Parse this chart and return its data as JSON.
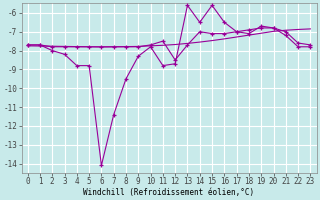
{
  "xlabel": "Windchill (Refroidissement éolien,°C)",
  "bg_color": "#c8eaea",
  "line_color": "#990099",
  "grid_color": "#ffffff",
  "x": [
    0,
    1,
    2,
    3,
    4,
    5,
    6,
    7,
    8,
    9,
    10,
    11,
    12,
    13,
    14,
    15,
    16,
    17,
    18,
    19,
    20,
    21,
    22,
    23
  ],
  "line1": [
    -7.7,
    -7.7,
    -8.0,
    -8.2,
    -8.8,
    -8.8,
    -14.1,
    -11.4,
    -9.5,
    -8.3,
    -7.8,
    -8.8,
    -8.7,
    -5.6,
    -6.5,
    -5.6,
    -6.5,
    -7.0,
    -7.1,
    -6.7,
    -6.8,
    -7.2,
    -7.8,
    -7.8
  ],
  "line2": [
    -7.7,
    -7.7,
    -7.8,
    -7.8,
    -7.8,
    -7.8,
    -7.8,
    -7.8,
    -7.8,
    -7.8,
    -7.7,
    -7.5,
    -8.5,
    -7.7,
    -7.0,
    -7.1,
    -7.1,
    -7.0,
    -6.9,
    -6.8,
    -6.8,
    -7.0,
    -7.6,
    -7.7
  ],
  "trend": [
    -7.75,
    -7.76,
    -7.77,
    -7.78,
    -7.79,
    -7.8,
    -7.81,
    -7.8,
    -7.79,
    -7.78,
    -7.75,
    -7.72,
    -7.68,
    -7.62,
    -7.55,
    -7.47,
    -7.38,
    -7.28,
    -7.18,
    -7.08,
    -6.98,
    -6.92,
    -6.88,
    -6.85
  ],
  "ylim": [
    -14.5,
    -5.5
  ],
  "xlim": [
    -0.5,
    23.5
  ],
  "yticks": [
    -14,
    -13,
    -12,
    -11,
    -10,
    -9,
    -8,
    -7,
    -6
  ],
  "xticks": [
    0,
    1,
    2,
    3,
    4,
    5,
    6,
    7,
    8,
    9,
    10,
    11,
    12,
    13,
    14,
    15,
    16,
    17,
    18,
    19,
    20,
    21,
    22,
    23
  ],
  "tick_fontsize": 5.5,
  "xlabel_fontsize": 5.5,
  "spine_color": "#888888",
  "tick_color": "#444444"
}
